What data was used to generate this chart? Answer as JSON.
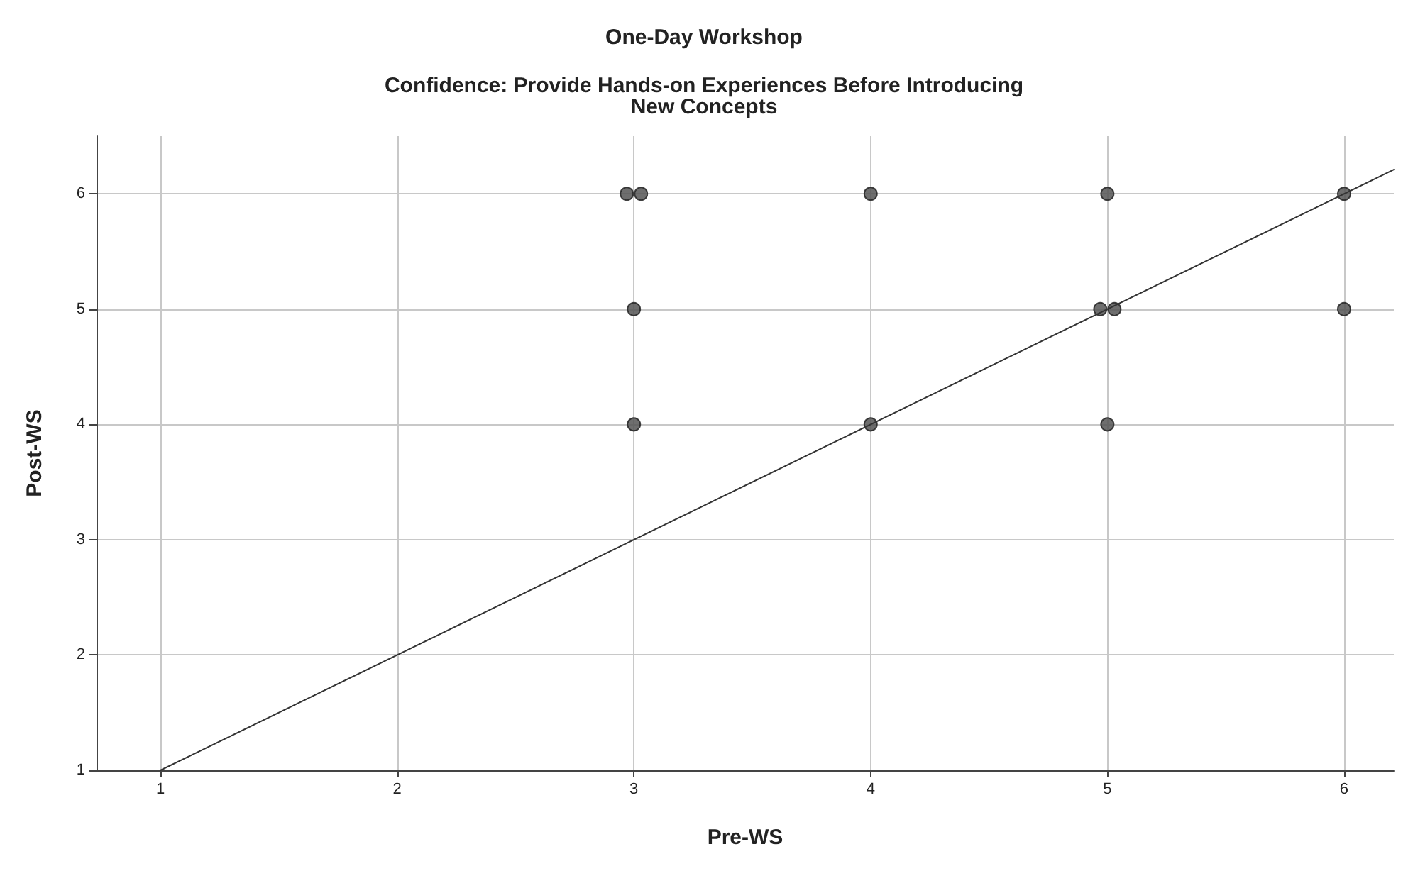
{
  "chart_data": {
    "type": "scatter",
    "title": "One-Day Workshop",
    "subtitle": "Confidence: Provide Hands-on Experiences Before Introducing\nNew Concepts",
    "xlabel": "Pre-WS",
    "ylabel": "Post-WS",
    "series": [
      {
        "color": "#555555",
        "x": [
          2.97,
          3.03,
          3,
          3,
          4,
          4,
          5,
          4.97,
          5.03,
          5,
          6,
          6
        ],
        "values": [
          6,
          6,
          5,
          4,
          6,
          4,
          6,
          5,
          5,
          4,
          6,
          5
        ]
      },
      {
        "type": "line",
        "color": "#333333",
        "marker": "none",
        "x": [
          1,
          6.21
        ],
        "values": [
          1,
          6.21
        ]
      }
    ],
    "xlim": [
      0.73,
      6.21
    ],
    "xticks": [
      1,
      2,
      3,
      4,
      5,
      6
    ],
    "ylim": [
      1,
      6.5
    ],
    "yticks": [
      1,
      2,
      3,
      4,
      5,
      6
    ],
    "grid": true,
    "marker": "circle",
    "line_style": "solid"
  }
}
